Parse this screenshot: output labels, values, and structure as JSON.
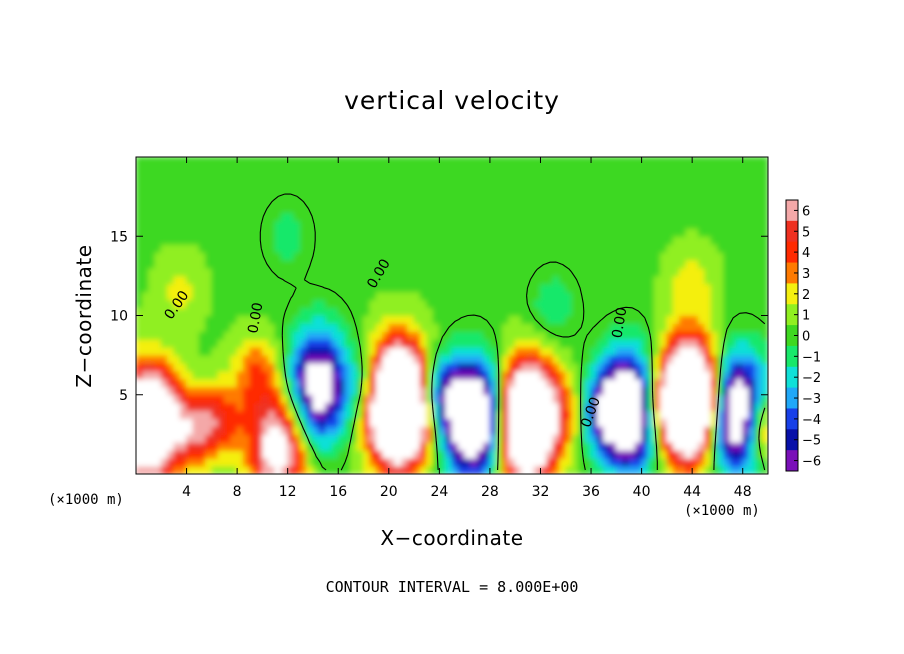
{
  "chart_data": {
    "type": "heatmap",
    "title": "vertical velocity",
    "xlabel": "X−coordinate",
    "ylabel": "Z−coordinate",
    "x_unit": "(×1000 m)",
    "x_unit_right": "(×1000 m)",
    "annotation": "CONTOUR INTERVAL = 8.000E+00",
    "xlim": [
      0,
      50
    ],
    "ylim": [
      0,
      20
    ],
    "xticks": [
      "4",
      "8",
      "12",
      "16",
      "20",
      "24",
      "28",
      "32",
      "36",
      "40",
      "44",
      "48"
    ],
    "yticks": [
      "5",
      "10",
      "15"
    ],
    "colorbar": {
      "labels": [
        "6",
        "5",
        "4",
        "3",
        "2",
        "1",
        "0",
        "−1",
        "−2",
        "−3",
        "−4",
        "−5",
        "−6"
      ],
      "colors": [
        "#f4a8a8",
        "#ef3020",
        "#ff2a00",
        "#ff7a00",
        "#f4ef10",
        "#90ef20",
        "#3ed820",
        "#18e86a",
        "#10e0d8",
        "#20a8f8",
        "#1840e8",
        "#0810a8",
        "#7a10b8"
      ],
      "range": [
        -6,
        6
      ]
    },
    "contour_labels": [
      "0.00",
      "0.00",
      "0.00",
      "0.00",
      "0.00"
    ],
    "background_value": 0.3,
    "features": [
      {
        "x": 1.0,
        "z": 3.2,
        "w": 13
      },
      {
        "x": 4.6,
        "z": 2.8,
        "w": 4.5
      },
      {
        "x": 6.8,
        "z": 3.5,
        "w": 3.5
      },
      {
        "x": 9.6,
        "z": 6.5,
        "w": 3
      },
      {
        "x": 11.3,
        "z": 1.8,
        "w": 8
      },
      {
        "x": 14.4,
        "z": 5.5,
        "w": -9
      },
      {
        "x": 20.8,
        "z": 4.4,
        "w": 20
      },
      {
        "x": 18.5,
        "z": 5.5,
        "w": -3
      },
      {
        "x": 24.0,
        "z": 5.0,
        "w": -5
      },
      {
        "x": 26.8,
        "z": 3.5,
        "w": -12
      },
      {
        "x": 31.0,
        "z": 3.4,
        "w": 16
      },
      {
        "x": 34.5,
        "z": 4.0,
        "w": 2
      },
      {
        "x": 36.8,
        "z": 4.0,
        "w": -4
      },
      {
        "x": 39.0,
        "z": 4.0,
        "w": -12
      },
      {
        "x": 41.0,
        "z": 4.5,
        "w": 2
      },
      {
        "x": 43.8,
        "z": 4.6,
        "w": 18
      },
      {
        "x": 47.6,
        "z": 3.8,
        "w": -12
      },
      {
        "x": 49.5,
        "z": 3.0,
        "w": 6
      },
      {
        "x": 3.5,
        "z": 11.5,
        "w": 1.5
      },
      {
        "x": 44.0,
        "z": 12.0,
        "w": 1.8
      },
      {
        "x": 33.0,
        "z": 10.5,
        "w": -1.5
      },
      {
        "x": 12.0,
        "z": 15.0,
        "w": -1.2
      }
    ]
  }
}
